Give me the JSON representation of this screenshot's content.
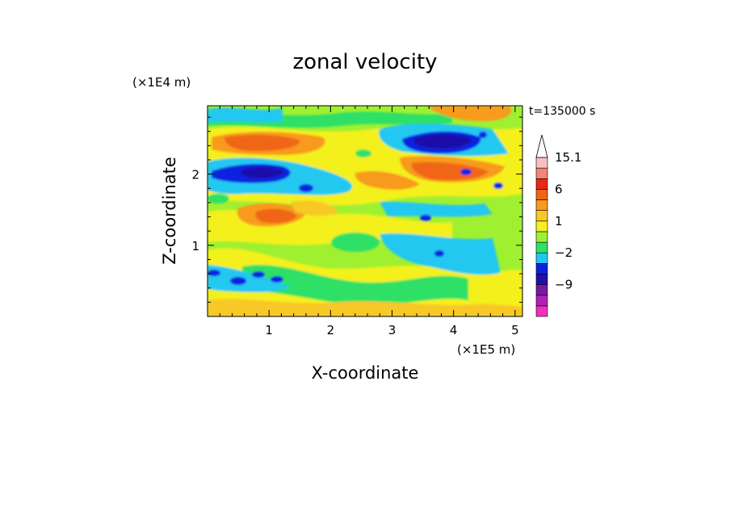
{
  "chart_data": {
    "type": "heatmap",
    "title": "zonal velocity",
    "xlabel": "X-coordinate",
    "ylabel": "Z-coordinate",
    "x_unit": "(×1E5 m)",
    "y_unit": "(×1E4 m)",
    "time_label": "t=135000 s",
    "xlim": [
      0,
      5.12
    ],
    "ylim": [
      0,
      2.96
    ],
    "x_ticks": [
      "1",
      "2",
      "3",
      "4",
      "5"
    ],
    "y_ticks": [
      "1",
      "2"
    ],
    "x_tick_values": [
      1,
      2,
      3,
      4,
      5
    ],
    "y_tick_values": [
      1,
      2
    ],
    "colorbar": {
      "levels": [
        -15,
        -12,
        -9,
        -6,
        -3,
        -2,
        -1,
        0,
        1,
        2,
        3,
        6,
        9,
        12,
        15.1
      ],
      "labels": [
        {
          "value": 15.1,
          "text": "15.1"
        },
        {
          "value": 6,
          "text": "6"
        },
        {
          "value": 1,
          "text": "1"
        },
        {
          "value": -2,
          "text": "−2"
        },
        {
          "value": -9,
          "text": "−9"
        }
      ],
      "colors": [
        "#f02ec0",
        "#b21fb4",
        "#78189e",
        "#1f10a8",
        "#0a22e0",
        "#20c8f0",
        "#2ee066",
        "#a0f032",
        "#f4f01e",
        "#f8c828",
        "#f89a1c",
        "#f06614",
        "#e82814",
        "#f28478",
        "#f8c0c0"
      ],
      "extend_top": "#ffffff"
    },
    "features": [
      {
        "x": 0.9,
        "z": 2.5,
        "value": 6
      },
      {
        "x": 0.8,
        "z": 2.05,
        "value": -9
      },
      {
        "x": 1.2,
        "z": 1.35,
        "value": 6
      },
      {
        "x": 3.9,
        "z": 2.45,
        "value": -9
      },
      {
        "x": 4.0,
        "z": 2.05,
        "value": 6
      },
      {
        "x": 4.65,
        "z": 2.9,
        "value": 6
      },
      {
        "x": 3.4,
        "z": 1.7,
        "value": 3
      },
      {
        "x": 0.6,
        "z": 0.5,
        "value": -3
      },
      {
        "x": 3.9,
        "z": 0.9,
        "value": -2
      }
    ]
  }
}
